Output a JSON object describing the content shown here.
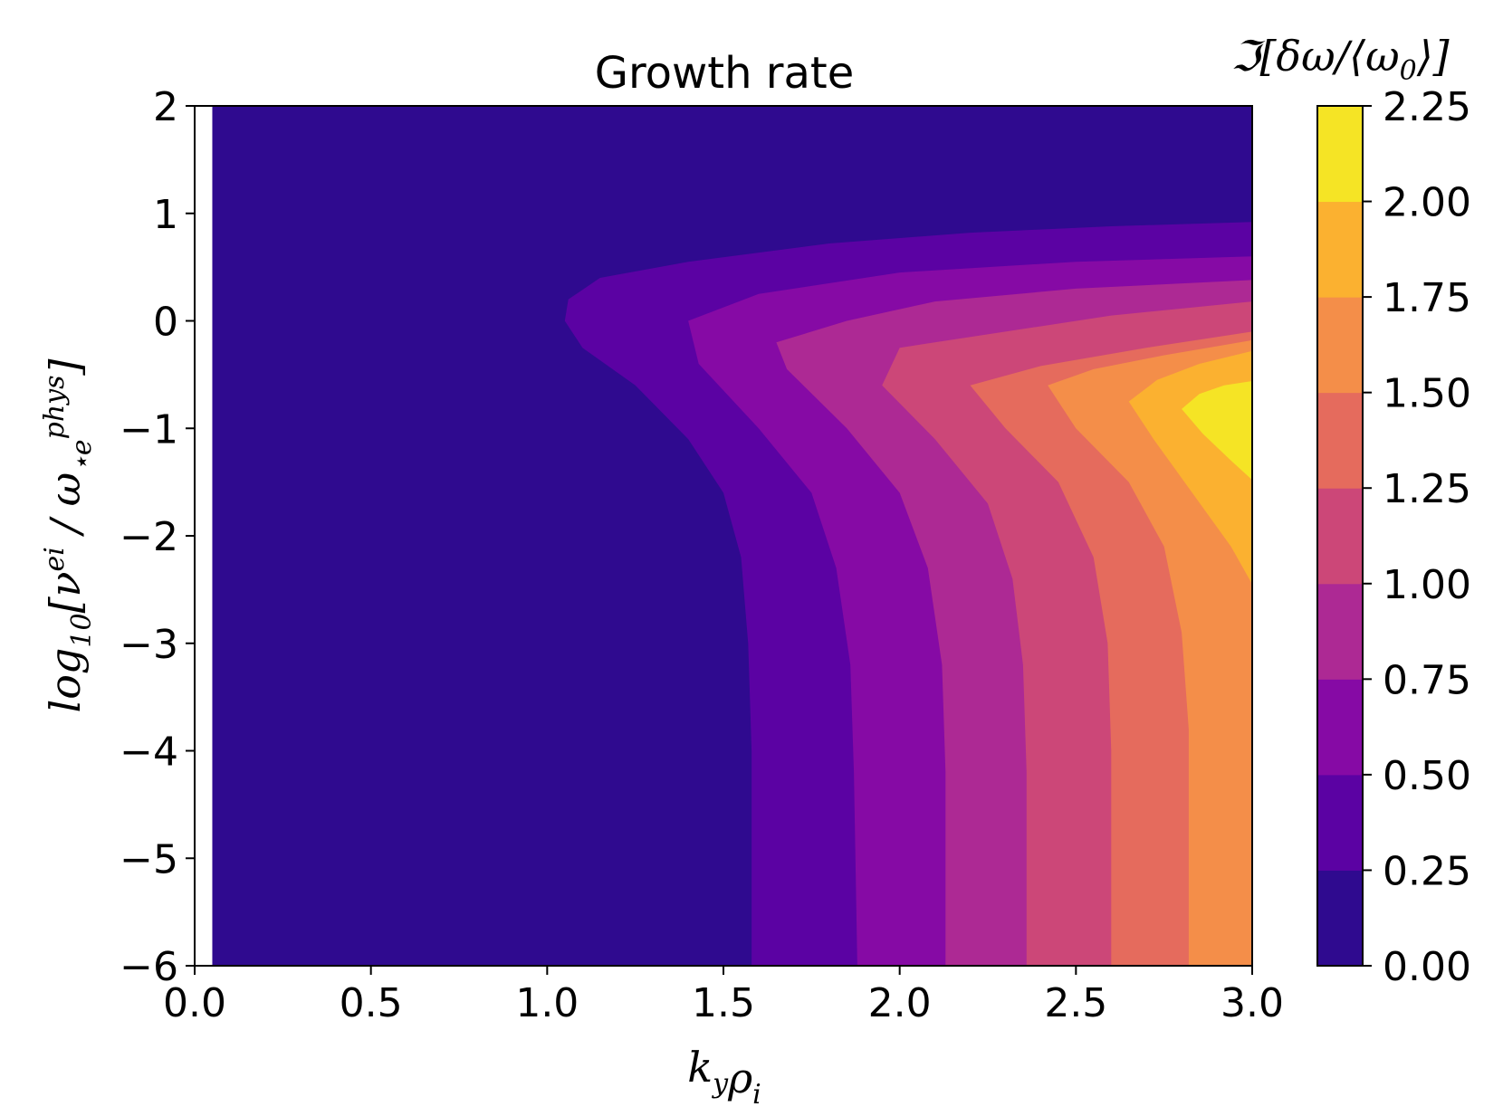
{
  "chart_data": {
    "type": "heatmap",
    "subtype": "filled-contour",
    "title": "Growth rate",
    "xlabel": "k_y ρ_i",
    "ylabel": "log_10[ν^ei / ω_⋆e^phys]",
    "colorbar_label": "ℑ[δω/⟨ω_0⟩]",
    "colormap": "plasma",
    "xlim": [
      0.0,
      3.0
    ],
    "ylim": [
      -6,
      2
    ],
    "x_ticks": [
      "0.0",
      "0.5",
      "1.0",
      "1.5",
      "2.0",
      "2.5",
      "3.0"
    ],
    "y_ticks": [
      "−6",
      "−5",
      "−4",
      "−3",
      "−2",
      "−1",
      "0",
      "1",
      "2"
    ],
    "levels": [
      0.0,
      0.25,
      0.5,
      0.75,
      1.0,
      1.25,
      1.5,
      1.75,
      2.0,
      2.25
    ],
    "level_labels": [
      "0.00",
      "0.25",
      "0.50",
      "0.75",
      "1.00",
      "1.25",
      "1.50",
      "1.75",
      "2.00",
      "2.25"
    ],
    "level_colors": [
      "#2f0a8f",
      "#5b02a3",
      "#860aa5",
      "#ad2994",
      "#cc4778",
      "#e56b5d",
      "#f48e49",
      "#fbb130",
      "#f5e425"
    ],
    "data_x_range": [
      0.05,
      3.0
    ],
    "contour_boundaries": [
      {
        "level": 0.25,
        "points": [
          [
            3.0,
            0.92
          ],
          [
            2.6,
            0.88
          ],
          [
            2.2,
            0.82
          ],
          [
            1.8,
            0.72
          ],
          [
            1.4,
            0.55
          ],
          [
            1.15,
            0.4
          ],
          [
            1.06,
            0.2
          ],
          [
            1.05,
            0.0
          ],
          [
            1.1,
            -0.25
          ],
          [
            1.25,
            -0.6
          ],
          [
            1.4,
            -1.1
          ],
          [
            1.5,
            -1.6
          ],
          [
            1.55,
            -2.2
          ],
          [
            1.57,
            -3.0
          ],
          [
            1.58,
            -4.0
          ],
          [
            1.58,
            -6.0
          ]
        ]
      },
      {
        "level": 0.5,
        "points": [
          [
            3.0,
            0.6
          ],
          [
            2.5,
            0.55
          ],
          [
            2.0,
            0.45
          ],
          [
            1.6,
            0.25
          ],
          [
            1.4,
            0.0
          ],
          [
            1.43,
            -0.4
          ],
          [
            1.6,
            -1.0
          ],
          [
            1.75,
            -1.6
          ],
          [
            1.82,
            -2.3
          ],
          [
            1.86,
            -3.2
          ],
          [
            1.87,
            -4.2
          ],
          [
            1.88,
            -6.0
          ]
        ]
      },
      {
        "level": 0.75,
        "points": [
          [
            3.0,
            0.38
          ],
          [
            2.5,
            0.3
          ],
          [
            2.1,
            0.18
          ],
          [
            1.85,
            0.0
          ],
          [
            1.65,
            -0.2
          ],
          [
            1.68,
            -0.45
          ],
          [
            1.85,
            -1.0
          ],
          [
            2.0,
            -1.6
          ],
          [
            2.08,
            -2.3
          ],
          [
            2.12,
            -3.2
          ],
          [
            2.13,
            -4.2
          ],
          [
            2.13,
            -6.0
          ]
        ]
      },
      {
        "level": 1.0,
        "points": [
          [
            3.0,
            0.18
          ],
          [
            2.6,
            0.05
          ],
          [
            2.3,
            -0.1
          ],
          [
            2.0,
            -0.25
          ],
          [
            1.95,
            -0.6
          ],
          [
            2.1,
            -1.1
          ],
          [
            2.25,
            -1.7
          ],
          [
            2.32,
            -2.4
          ],
          [
            2.35,
            -3.2
          ],
          [
            2.36,
            -4.2
          ],
          [
            2.36,
            -6.0
          ]
        ]
      },
      {
        "level": 1.25,
        "points": [
          [
            3.0,
            -0.1
          ],
          [
            2.7,
            -0.25
          ],
          [
            2.4,
            -0.42
          ],
          [
            2.2,
            -0.6
          ],
          [
            2.3,
            -1.0
          ],
          [
            2.45,
            -1.5
          ],
          [
            2.55,
            -2.2
          ],
          [
            2.59,
            -3.0
          ],
          [
            2.6,
            -4.0
          ],
          [
            2.6,
            -6.0
          ]
        ]
      },
      {
        "level": 1.5,
        "points": [
          [
            3.0,
            -0.18
          ],
          [
            2.75,
            -0.32
          ],
          [
            2.55,
            -0.45
          ],
          [
            2.42,
            -0.6
          ],
          [
            2.5,
            -1.0
          ],
          [
            2.65,
            -1.5
          ],
          [
            2.75,
            -2.1
          ],
          [
            2.8,
            -2.9
          ],
          [
            2.82,
            -3.8
          ],
          [
            2.82,
            -6.0
          ]
        ]
      },
      {
        "level": 1.75,
        "points": [
          [
            3.0,
            -0.28
          ],
          [
            2.85,
            -0.4
          ],
          [
            2.73,
            -0.55
          ],
          [
            2.65,
            -0.75
          ],
          [
            2.72,
            -1.1
          ],
          [
            2.83,
            -1.6
          ],
          [
            2.94,
            -2.1
          ],
          [
            3.0,
            -2.45
          ]
        ]
      },
      {
        "level": 2.0,
        "points": [
          [
            3.0,
            -0.56
          ],
          [
            2.92,
            -0.6
          ],
          [
            2.85,
            -0.68
          ],
          [
            2.8,
            -0.82
          ],
          [
            2.86,
            -1.05
          ],
          [
            2.94,
            -1.3
          ],
          [
            3.0,
            -1.48
          ]
        ]
      }
    ],
    "grid": false,
    "legend": "colorbar-right"
  }
}
